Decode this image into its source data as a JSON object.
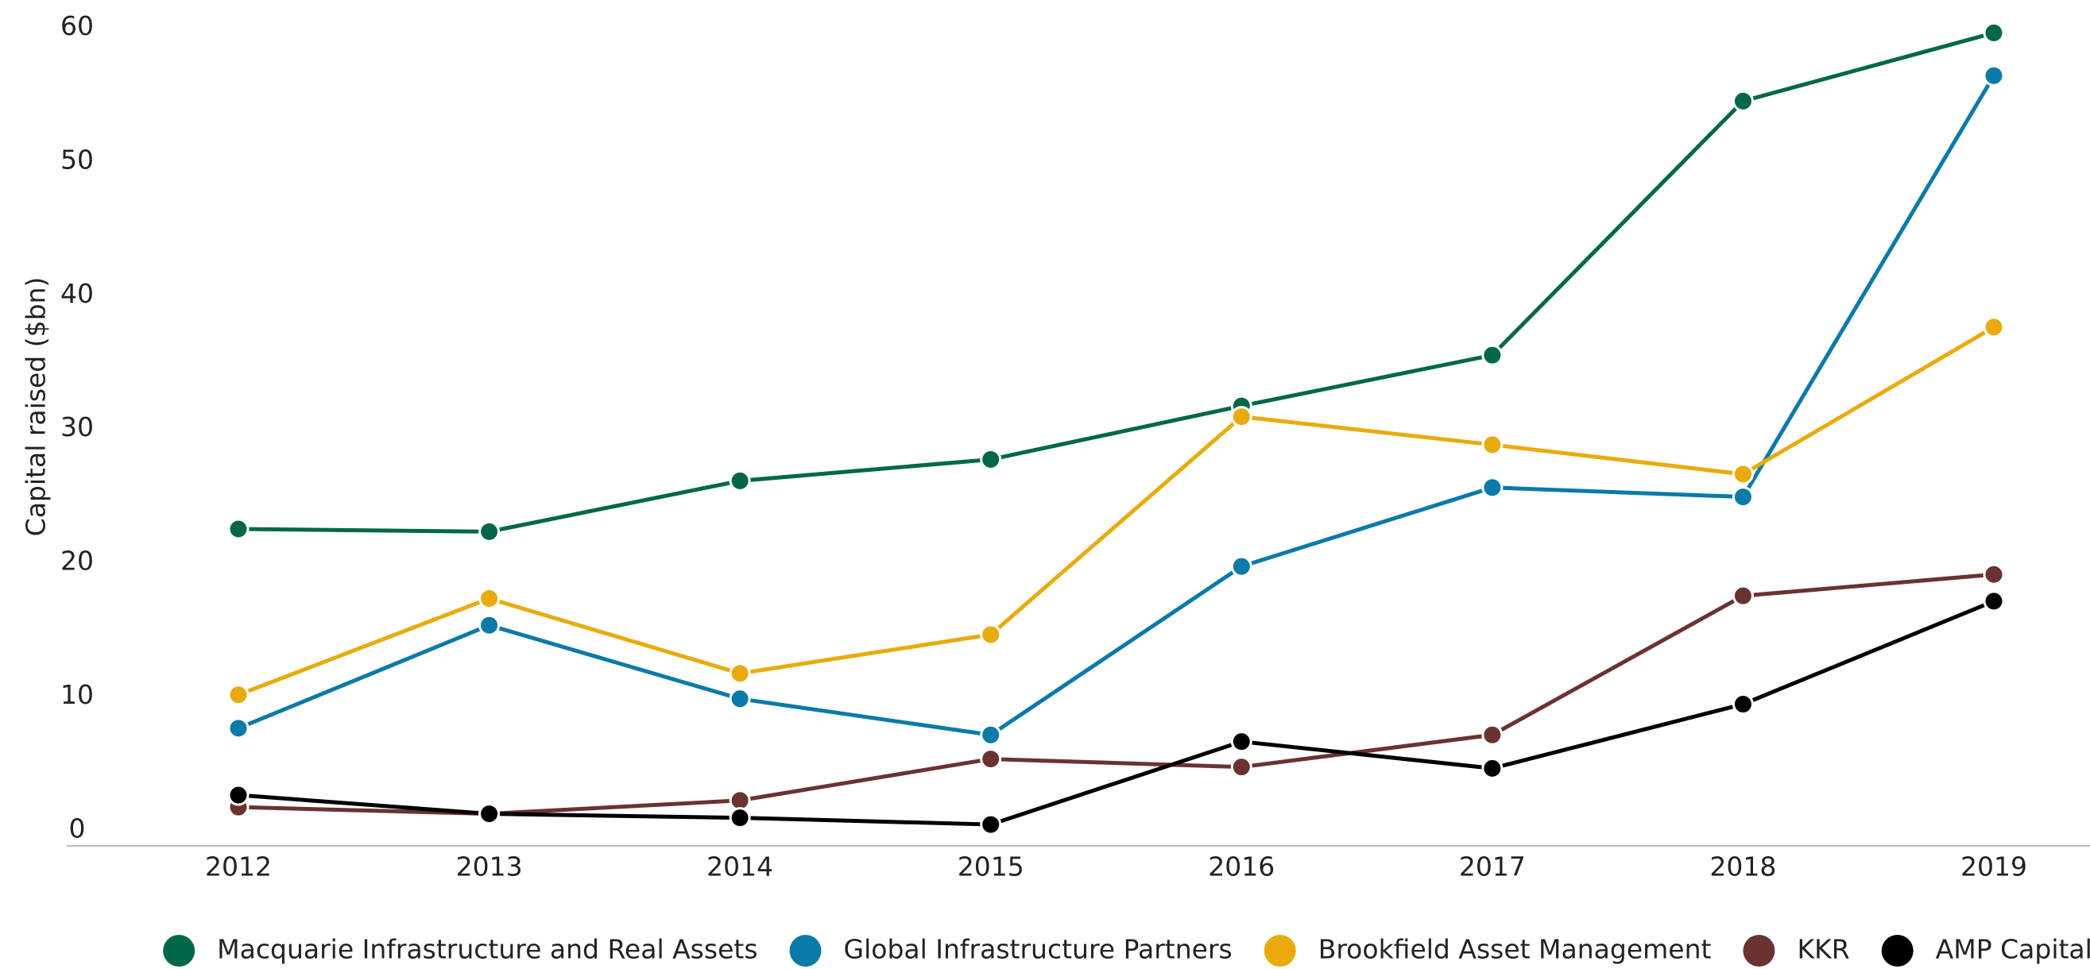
{
  "chart_data": {
    "type": "line",
    "y_label": "Capital raised ($bn)",
    "categories": [
      "2012",
      "2013",
      "2014",
      "2015",
      "2016",
      "2017",
      "2018",
      "2019"
    ],
    "series": [
      {
        "name": "Macquarie Infrastructure and Real Assets",
        "color": "#00674a",
        "values": [
          22.5,
          22.3,
          26.1,
          27.7,
          31.7,
          35.5,
          54.5,
          59.6
        ]
      },
      {
        "name": "Global Infrastructure Partners",
        "color": "#0a7aa8",
        "values": [
          7.6,
          15.3,
          9.8,
          7.1,
          19.7,
          25.6,
          24.9,
          56.4
        ]
      },
      {
        "name": "Brookfield Asset Management",
        "color": "#e8ab0b",
        "values": [
          10.1,
          17.3,
          11.7,
          14.6,
          30.9,
          28.8,
          26.6,
          37.6
        ]
      },
      {
        "name": "KKR",
        "color": "#6b3232",
        "values": [
          1.7,
          1.2,
          2.2,
          5.3,
          4.7,
          7.1,
          17.5,
          19.1
        ]
      },
      {
        "name": "AMP Capital",
        "color": "#000000",
        "values": [
          2.6,
          1.2,
          0.9,
          0.4,
          6.6,
          4.6,
          9.4,
          17.1
        ]
      }
    ],
    "ylim": [
      -1.2,
      62
    ],
    "yticks": [
      0,
      10,
      20,
      30,
      40,
      50,
      60
    ],
    "grid": false,
    "legend": "bottom"
  }
}
